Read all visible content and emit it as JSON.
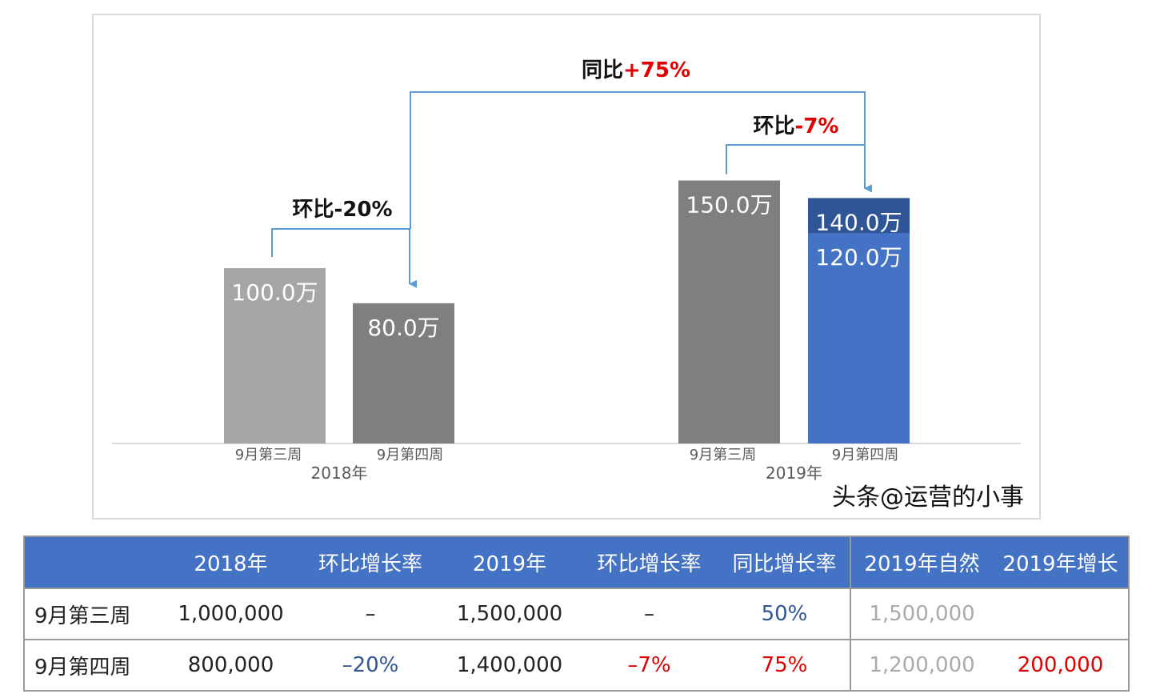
{
  "chart_data": {
    "type": "bar",
    "unit": "万",
    "groups": [
      {
        "label": "2018年",
        "bars": [
          {
            "category": "9月第三周",
            "value": 100.0,
            "label": "100.0万",
            "color": "#a6a6a6"
          },
          {
            "category": "9月第四周",
            "value": 80.0,
            "label": "80.0万",
            "color": "#7f7f7f"
          }
        ]
      },
      {
        "label": "2019年",
        "bars": [
          {
            "category": "9月第三周",
            "value": 150.0,
            "label": "150.0万",
            "color": "#7f7f7f"
          },
          {
            "category": "9月第四周",
            "value": 140.0,
            "label": "140.0万",
            "color": "#2f5597",
            "inner_value": 120.0,
            "inner_label": "120.0万",
            "inner_color": "#4472c4"
          }
        ]
      }
    ],
    "annotations": [
      {
        "prefix": "环比",
        "value": "-20%",
        "value_color": "#111111"
      },
      {
        "prefix": "同比",
        "value": "+75%",
        "value_color": "#e00000"
      },
      {
        "prefix": "环比",
        "value": "-7%",
        "value_color": "#e00000"
      }
    ],
    "ylim": [
      0,
      160
    ],
    "grid": false,
    "colors": {
      "connector": "#5b9bd5",
      "axis": "#d9d9d9"
    }
  },
  "table": {
    "headers": [
      "",
      "2018年",
      "环比增长率",
      "2019年",
      "环比增长率",
      "同比增长率",
      "2019年自然",
      "2019年增长"
    ],
    "rows": [
      [
        "9月第三周",
        "1,000,000",
        "–",
        "1,500,000",
        "–",
        "50%",
        "1,500,000",
        ""
      ],
      [
        "9月第四周",
        "800,000",
        "–20%",
        "1,400,000",
        "–7%",
        "75%",
        "1,200,000",
        "200,000"
      ]
    ]
  },
  "watermark": "头条@运营的小事"
}
